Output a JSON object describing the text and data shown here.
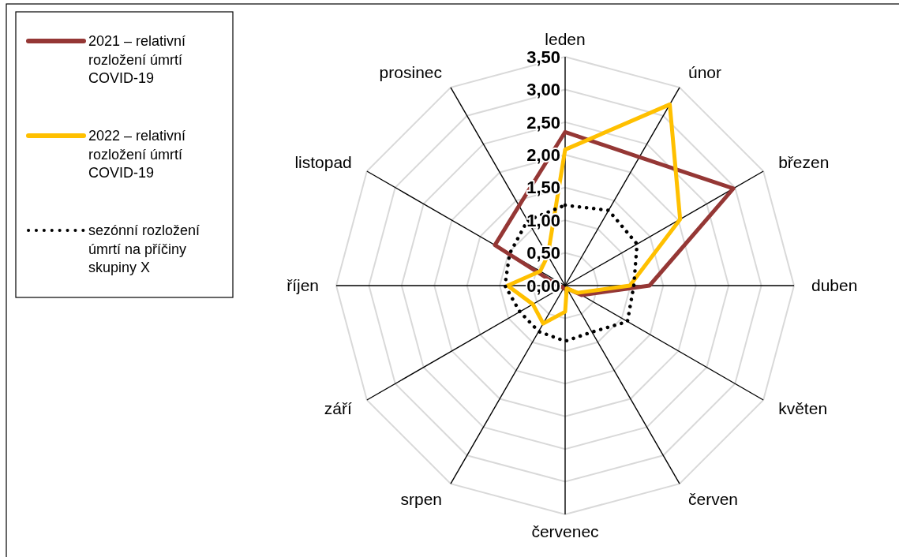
{
  "chart_data": {
    "type": "radar",
    "categories": [
      "leden",
      "únor",
      "březen",
      "duben",
      "květen",
      "červen",
      "červenec",
      "srpen",
      "září",
      "říjen",
      "listopad",
      "prosinec"
    ],
    "series": [
      {
        "name": "2021 – relativní rozložení úmrtí COVID-19",
        "color": "#953735",
        "values": [
          2.35,
          2.27,
          2.97,
          1.29,
          0.29,
          0.05,
          0.05,
          0.05,
          0.05,
          0.1,
          1.24,
          1.41
        ]
      },
      {
        "name": "2022 – relativní rozložení úmrtí COVID-19",
        "color": "#ffc000",
        "values": [
          2.08,
          3.2,
          2.03,
          0.99,
          0.22,
          0.05,
          0.4,
          0.67,
          0.57,
          0.88,
          0.44,
          0.53
        ]
      },
      {
        "name": "sezónní rozložení úmrtí na příčiny skupiny X",
        "color": "#000000",
        "line_style": "dotted",
        "values": [
          1.23,
          1.33,
          1.27,
          1.05,
          1.1,
          0.82,
          0.85,
          0.81,
          0.8,
          0.92,
          0.98,
          1.15
        ]
      }
    ],
    "ylim": [
      0,
      3.5
    ],
    "yticks": [
      {
        "value": 0,
        "label": "0,00"
      },
      {
        "value": 0.5,
        "label": "0,50"
      },
      {
        "value": 1,
        "label": "1,00"
      },
      {
        "value": 1.5,
        "label": "1,50"
      },
      {
        "value": 2,
        "label": "2,00"
      },
      {
        "value": 2.5,
        "label": "2,50"
      },
      {
        "value": 3,
        "label": "3,00"
      },
      {
        "value": 3.5,
        "label": "3,50"
      }
    ],
    "grid": true,
    "legend": "top left",
    "line_style": "solid",
    "marker": "none"
  }
}
